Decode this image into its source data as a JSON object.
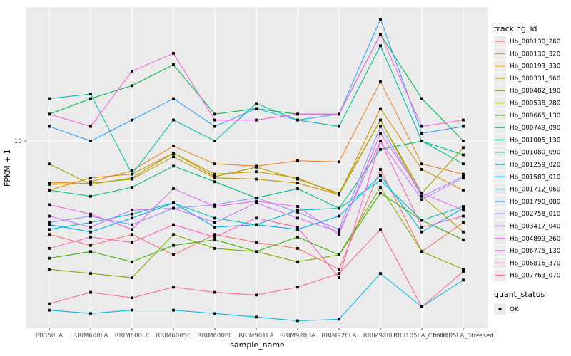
{
  "figure": {
    "background": "#FFFFFF",
    "panel_background": "#EBEBEB",
    "grid_color": "#FFFFFF",
    "tick_color": "#333333",
    "axis_text_color": "#4D4D4D",
    "title_text_color": "#000000",
    "marker_color": "#000000",
    "legend_key_fill": "#EBEBEB"
  },
  "chart_data": {
    "type": "line",
    "title": "",
    "xlabel": "sample_name",
    "ylabel": "FPKM + 1",
    "y_scale": "log10",
    "y_ticks": [
      {
        "value": 10,
        "label": "10"
      }
    ],
    "grid": "major-only",
    "legend_position": "right",
    "marker": "filled-square",
    "categories": [
      "PB350LA",
      "RRIM600LA",
      "RRIM600LE",
      "RRIM600SE",
      "RRIM600PE",
      "RRIM901LA",
      "RRIM928BA",
      "RRIM928LA",
      "RRIM928LE",
      "RRII105LA_Control",
      "RRII105LA_Stressed"
    ],
    "series": [
      {
        "name": "Hb_000130_260",
        "color": "#F8766D",
        "values": [
          3.1,
          2.7,
          3.1,
          2.4,
          3.1,
          2.8,
          2.6,
          2.0,
          7.0,
          2.5,
          3.6
        ]
      },
      {
        "name": "Hb_000130_320",
        "color": "#EA8331",
        "values": [
          5.9,
          6.0,
          6.9,
          9.4,
          7.5,
          7.3,
          7.8,
          7.7,
          21,
          7.5,
          6.6
        ]
      },
      {
        "name": "Hb_000193_330",
        "color": "#D89000",
        "values": [
          5.4,
          6.3,
          6.6,
          8.6,
          6.6,
          6.8,
          6.3,
          5.1,
          15,
          7.0,
          5.4
        ]
      },
      {
        "name": "Hb_000331_560",
        "color": "#C09B00",
        "values": [
          5.8,
          5.9,
          6.2,
          8.2,
          6.3,
          6.2,
          5.9,
          5.1,
          13,
          5.0,
          3.2
        ]
      },
      {
        "name": "Hb_000482_190",
        "color": "#A3A500",
        "values": [
          7.5,
          5.8,
          6.3,
          8.6,
          6.4,
          7.2,
          6.2,
          5.2,
          13,
          5.2,
          9.2
        ]
      },
      {
        "name": "Hb_000538_280",
        "color": "#7CAE00",
        "values": [
          2.0,
          1.9,
          1.8,
          3.1,
          2.6,
          2.5,
          2.2,
          2.4,
          5.6,
          2.5,
          2.0
        ]
      },
      {
        "name": "Hb_000665_130",
        "color": "#39B600",
        "values": [
          2.3,
          2.5,
          2.2,
          2.7,
          2.9,
          2.5,
          3.0,
          2.4,
          5.2,
          3.7,
          2.9
        ]
      },
      {
        "name": "Hb_000749_090",
        "color": "#00BB4E",
        "values": [
          14,
          17,
          20,
          26,
          14,
          15,
          14,
          14,
          38,
          17,
          10
        ]
      },
      {
        "name": "Hb_001005_130",
        "color": "#00BF7D",
        "values": [
          5.4,
          5.0,
          5.6,
          7.3,
          6.0,
          4.9,
          5.5,
          4.3,
          9.0,
          10,
          7.5
        ]
      },
      {
        "name": "Hb_001080_090",
        "color": "#00C1A3",
        "values": [
          17,
          18,
          6.6,
          13,
          10,
          16,
          13,
          12,
          33,
          10,
          8.4
        ]
      },
      {
        "name": "Hb_001259_020",
        "color": "#00BFC4",
        "values": [
          3.3,
          3.6,
          4.0,
          4.6,
          3.8,
          3.5,
          4.2,
          4.3,
          6.1,
          3.7,
          4.4
        ]
      },
      {
        "name": "Hb_001589_010",
        "color": "#00BAE0",
        "values": [
          1.2,
          1.15,
          1.2,
          1.2,
          1.15,
          1.1,
          1.05,
          1.07,
          1.9,
          1.25,
          1.75
        ]
      },
      {
        "name": "Hb_001712_060",
        "color": "#00B0F6",
        "values": [
          3.5,
          3.2,
          3.8,
          4.6,
          3.4,
          3.5,
          3.3,
          3.9,
          6.5,
          3.2,
          4.3
        ]
      },
      {
        "name": "Hb_001790_080",
        "color": "#35A2FF",
        "values": [
          12,
          10,
          13,
          17,
          12,
          15,
          13,
          14,
          46,
          11,
          12
        ]
      },
      {
        "name": "Hb_002758_010",
        "color": "#9590FF",
        "values": [
          3.6,
          3.9,
          3.5,
          4.3,
          4.5,
          4.9,
          4.1,
          3.3,
          12,
          5.0,
          6.4
        ]
      },
      {
        "name": "Hb_003417_040",
        "color": "#C77CFF",
        "values": [
          3.9,
          3.4,
          4.2,
          4.3,
          3.6,
          4.6,
          3.8,
          3.2,
          10,
          4.8,
          6.3
        ]
      },
      {
        "name": "Hb_004899_260",
        "color": "#E76BF3",
        "values": [
          4.5,
          4.0,
          3.3,
          5.5,
          4.4,
          4.7,
          4.4,
          3.1,
          11,
          5.2,
          4.2
        ]
      },
      {
        "name": "Hb_006775_130",
        "color": "#FA62DB",
        "values": [
          14,
          12,
          24,
          30,
          13,
          13,
          14,
          14,
          38,
          12,
          13
        ]
      },
      {
        "name": "Hb_006816_370",
        "color": "#FF62BC",
        "values": [
          2.6,
          3.0,
          2.8,
          3.5,
          3.0,
          3.8,
          3.4,
          1.8,
          10,
          3.4,
          3.9
        ]
      },
      {
        "name": "Hb_007763_070",
        "color": "#FF6A98",
        "values": [
          1.3,
          1.5,
          1.4,
          1.6,
          1.5,
          1.45,
          1.6,
          1.9,
          3.3,
          1.25,
          1.95
        ]
      }
    ],
    "legend": {
      "tracking_title": "tracking_id",
      "quant_title": "quant_status",
      "quant_items": [
        {
          "label": "OK"
        }
      ]
    }
  }
}
